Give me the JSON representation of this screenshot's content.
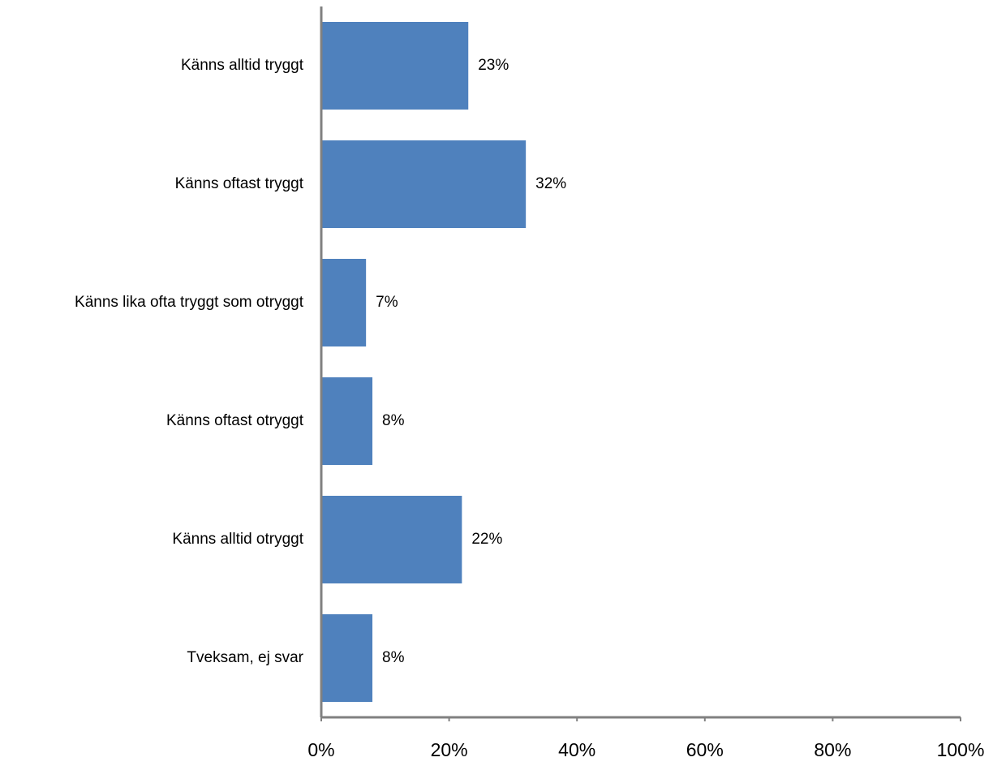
{
  "chart_data": {
    "type": "bar",
    "orientation": "horizontal",
    "categories": [
      "Känns alltid tryggt",
      "Känns oftast tryggt",
      "Känns lika ofta tryggt som otryggt",
      "Känns oftast otryggt",
      "Känns alltid otryggt",
      "Tveksam, ej svar"
    ],
    "values": [
      23,
      32,
      7,
      8,
      22,
      8
    ],
    "value_labels": [
      "23%",
      "32%",
      "7%",
      "8%",
      "22%",
      "8%"
    ],
    "color": "#4f81bd",
    "xlim": [
      0,
      100
    ],
    "xticks": [
      {
        "value": 0,
        "label": "0%"
      },
      {
        "value": 20,
        "label": "20%"
      },
      {
        "value": 40,
        "label": "40%"
      },
      {
        "value": 60,
        "label": "60%"
      },
      {
        "value": 80,
        "label": "80%"
      },
      {
        "value": 100,
        "label": "100%"
      }
    ],
    "grid": false
  }
}
